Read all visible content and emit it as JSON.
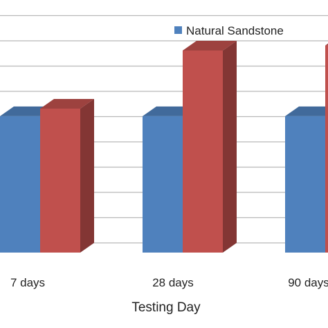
{
  "chart_data": {
    "type": "bar",
    "style": "3d-clustered-column",
    "xlabel": "Testing Day",
    "ylabel": "",
    "categories": [
      "7  days",
      "28 days",
      "90 days"
    ],
    "series": [
      {
        "name": "Natural Sandstone",
        "color": "#4f81bd",
        "values": [
          5.4,
          5.4,
          5.4
        ]
      },
      {
        "name": "",
        "color": "#c0504d",
        "values": [
          5.7,
          8.0,
          8.2
        ]
      }
    ],
    "ylim": [
      0,
      10
    ],
    "grid": true,
    "legend": {
      "position": "top-right",
      "entries": [
        "Natural Sandstone"
      ]
    }
  }
}
